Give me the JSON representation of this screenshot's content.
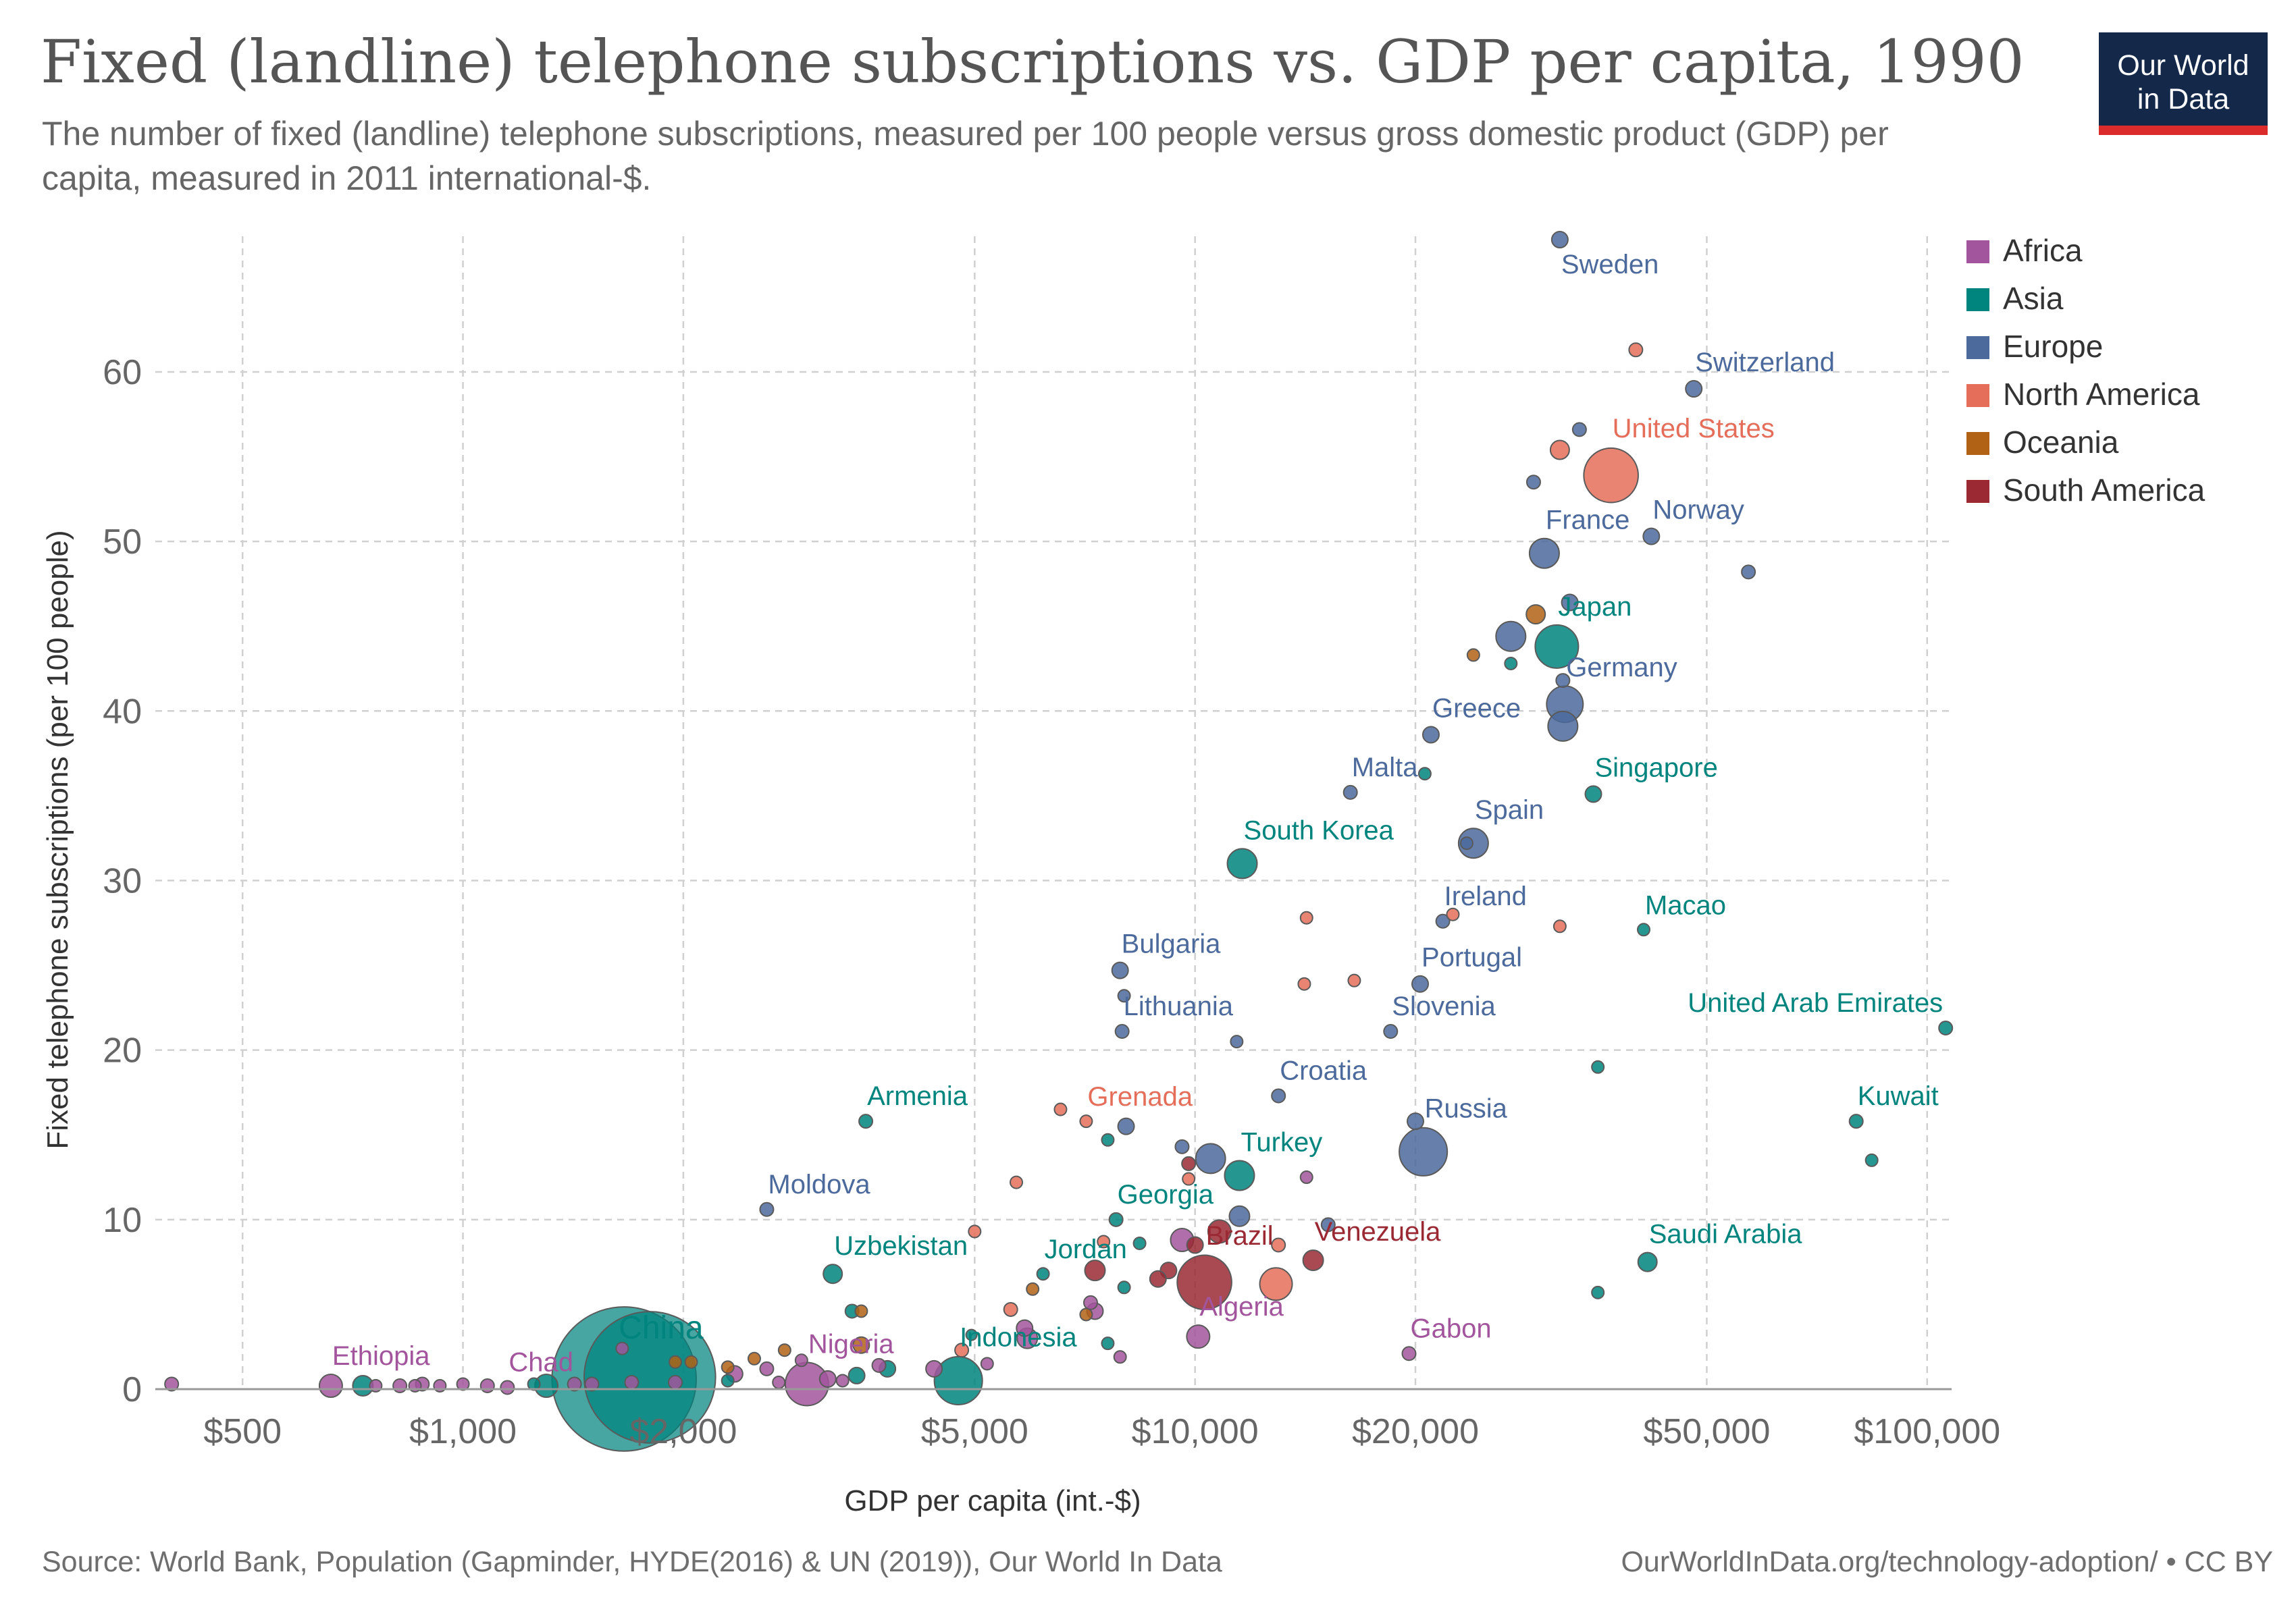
{
  "page": {
    "title": "Fixed (landline) telephone subscriptions vs. GDP per capita, 1990",
    "subtitle": "The number of fixed (landline) telephone subscriptions, measured per 100 people versus gross domestic product (GDP) per capita, measured in 2011 international-$.",
    "logo_line1": "Our World",
    "logo_line2": "in Data",
    "source": "Source: World Bank, Population (Gapminder, HYDE(2016) & UN (2019)), Our World In Data",
    "url": "OurWorldInData.org/technology-adoption/ • CC BY"
  },
  "chart_data": {
    "type": "scatter",
    "xlabel": "GDP per capita (int.-$)",
    "ylabel": "Fixed telephone subscriptions (per 100 people)",
    "x_scale": "log",
    "xlim": [
      380,
      108000
    ],
    "ylim": [
      0,
      68
    ],
    "x_ticks": [
      500,
      1000,
      2000,
      5000,
      10000,
      20000,
      50000,
      100000
    ],
    "x_tick_labels": [
      "$500",
      "$1,000",
      "$2,000",
      "$5,000",
      "$10,000",
      "$20,000",
      "$50,000",
      "$100,000"
    ],
    "y_ticks": [
      0,
      10,
      20,
      30,
      40,
      50,
      60
    ],
    "y_tick_labels": [
      "0",
      "10",
      "20",
      "30",
      "40",
      "50",
      "60"
    ],
    "grid": true,
    "legend_position": "right",
    "legend": [
      {
        "name": "Africa",
        "color": "#a2559c"
      },
      {
        "name": "Asia",
        "color": "#00847e"
      },
      {
        "name": "Europe",
        "color": "#4c6a9c"
      },
      {
        "name": "North America",
        "color": "#e56e5a"
      },
      {
        "name": "Oceania",
        "color": "#b16214"
      },
      {
        "name": "South America",
        "color": "#9a2934"
      }
    ],
    "points": [
      {
        "label": "Sweden",
        "x": 31500,
        "y": 67.8,
        "region": "Europe",
        "size": 1
      },
      {
        "label": "Switzerland",
        "x": 48000,
        "y": 59.0,
        "region": "Europe",
        "size": 1
      },
      {
        "label": "United States",
        "x": 37000,
        "y": 53.9,
        "region": "North America",
        "size": 4
      },
      {
        "label": "France",
        "x": 30000,
        "y": 49.3,
        "region": "Europe",
        "size": 2
      },
      {
        "label": "Norway",
        "x": 42000,
        "y": 50.3,
        "region": "Europe",
        "size": 1
      },
      {
        "label": "Japan",
        "x": 31200,
        "y": 43.8,
        "region": "Asia",
        "size": 3
      },
      {
        "label": "Germany",
        "x": 32000,
        "y": 40.4,
        "region": "Europe",
        "size": 2.5
      },
      {
        "label": "Greece",
        "x": 21000,
        "y": 38.6,
        "region": "Europe",
        "size": 1
      },
      {
        "label": "Singapore",
        "x": 35000,
        "y": 35.1,
        "region": "Asia",
        "size": 1
      },
      {
        "label": "Malta",
        "x": 16300,
        "y": 35.2,
        "region": "Europe",
        "size": 0.8
      },
      {
        "label": "Spain",
        "x": 24000,
        "y": 32.2,
        "region": "Europe",
        "size": 2
      },
      {
        "label": "South Korea",
        "x": 11600,
        "y": 31.0,
        "region": "Asia",
        "size": 2
      },
      {
        "label": "Ireland",
        "x": 21800,
        "y": 27.6,
        "region": "Europe",
        "size": 0.8
      },
      {
        "label": "Macao",
        "x": 41000,
        "y": 27.1,
        "region": "Asia",
        "size": 0.7
      },
      {
        "label": "Bulgaria",
        "x": 7900,
        "y": 24.7,
        "region": "Europe",
        "size": 1
      },
      {
        "label": "Portugal",
        "x": 20300,
        "y": 23.9,
        "region": "Europe",
        "size": 1
      },
      {
        "label": "Lithuania",
        "x": 7950,
        "y": 21.1,
        "region": "Europe",
        "size": 0.8
      },
      {
        "label": "Slovenia",
        "x": 18500,
        "y": 21.1,
        "region": "Europe",
        "size": 0.8
      },
      {
        "label": "United Arab Emirates",
        "x": 106000,
        "y": 21.3,
        "region": "Asia",
        "size": 0.8
      },
      {
        "label": "Croatia",
        "x": 13000,
        "y": 17.3,
        "region": "Europe",
        "size": 0.8
      },
      {
        "label": "Armenia",
        "x": 3550,
        "y": 15.8,
        "region": "Asia",
        "size": 0.8
      },
      {
        "label": "Grenada",
        "x": 7100,
        "y": 15.8,
        "region": "North America",
        "size": 0.7
      },
      {
        "label": "Kuwait",
        "x": 80000,
        "y": 15.8,
        "region": "Asia",
        "size": 0.8
      },
      {
        "label": "Russia",
        "x": 20500,
        "y": 14.0,
        "region": "Europe",
        "size": 3.5
      },
      {
        "label": "Turkey",
        "x": 11500,
        "y": 12.6,
        "region": "Asia",
        "size": 2
      },
      {
        "label": "Moldova",
        "x": 2600,
        "y": 10.6,
        "region": "Europe",
        "size": 0.8
      },
      {
        "label": "Georgia",
        "x": 7800,
        "y": 10.0,
        "region": "Asia",
        "size": 0.8
      },
      {
        "label": "Saudi Arabia",
        "x": 41500,
        "y": 7.5,
        "region": "Asia",
        "size": 1.2
      },
      {
        "label": "Jordan",
        "x": 6200,
        "y": 6.8,
        "region": "Asia",
        "size": 0.7
      },
      {
        "label": "Uzbekistan",
        "x": 3200,
        "y": 6.8,
        "region": "Asia",
        "size": 1.2
      },
      {
        "label": "Venezuela",
        "x": 14500,
        "y": 7.6,
        "region": "South America",
        "size": 1.3
      },
      {
        "label": "Brazil",
        "x": 10300,
        "y": 6.3,
        "region": "South America",
        "size": 4
      },
      {
        "label": "Algeria",
        "x": 10100,
        "y": 3.1,
        "region": "Africa",
        "size": 1.5
      },
      {
        "label": "Gabon",
        "x": 19600,
        "y": 2.1,
        "region": "Africa",
        "size": 0.8
      },
      {
        "label": "China",
        "x": 1660,
        "y": 0.6,
        "region": "Asia",
        "size": 11
      },
      {
        "label": "Indonesia",
        "x": 4750,
        "y": 0.5,
        "region": "Asia",
        "size": 3.5
      },
      {
        "label": "Nigeria",
        "x": 2950,
        "y": 0.3,
        "region": "Africa",
        "size": 3
      },
      {
        "label": "Ethiopia",
        "x": 660,
        "y": 0.2,
        "region": "Africa",
        "size": 1.5
      },
      {
        "label": "Chad",
        "x": 1150,
        "y": 0.1,
        "region": "Africa",
        "size": 0.8
      },
      {
        "label": "",
        "x": 1800,
        "y": 0.7,
        "region": "Asia",
        "size": 10
      },
      {
        "label": "",
        "x": 40000,
        "y": 61.3,
        "region": "North America",
        "size": 0.8
      },
      {
        "label": "",
        "x": 33500,
        "y": 56.6,
        "region": "Europe",
        "size": 0.8
      },
      {
        "label": "",
        "x": 31500,
        "y": 55.4,
        "region": "North America",
        "size": 1.2
      },
      {
        "label": "",
        "x": 29000,
        "y": 53.5,
        "region": "Europe",
        "size": 0.8
      },
      {
        "label": "",
        "x": 57000,
        "y": 48.2,
        "region": "Europe",
        "size": 0.8
      },
      {
        "label": "",
        "x": 32500,
        "y": 46.4,
        "region": "Europe",
        "size": 1
      },
      {
        "label": "",
        "x": 29200,
        "y": 45.7,
        "region": "Oceania",
        "size": 1.2
      },
      {
        "label": "",
        "x": 27000,
        "y": 44.4,
        "region": "Europe",
        "size": 2
      },
      {
        "label": "",
        "x": 24000,
        "y": 43.3,
        "region": "Oceania",
        "size": 0.7
      },
      {
        "label": "",
        "x": 27000,
        "y": 42.8,
        "region": "Asia",
        "size": 0.7
      },
      {
        "label": "",
        "x": 31800,
        "y": 41.8,
        "region": "Europe",
        "size": 0.8
      },
      {
        "label": "",
        "x": 31800,
        "y": 39.1,
        "region": "Europe",
        "size": 2
      },
      {
        "label": "",
        "x": 20600,
        "y": 36.3,
        "region": "Asia",
        "size": 0.7
      },
      {
        "label": "",
        "x": 23500,
        "y": 32.2,
        "region": "Europe",
        "size": 0.7
      },
      {
        "label": "",
        "x": 14200,
        "y": 27.8,
        "region": "North America",
        "size": 0.7
      },
      {
        "label": "",
        "x": 22500,
        "y": 28.0,
        "region": "North America",
        "size": 0.7
      },
      {
        "label": "",
        "x": 31500,
        "y": 27.3,
        "region": "North America",
        "size": 0.7
      },
      {
        "label": "",
        "x": 14100,
        "y": 23.9,
        "region": "North America",
        "size": 0.7
      },
      {
        "label": "",
        "x": 16500,
        "y": 24.1,
        "region": "North America",
        "size": 0.7
      },
      {
        "label": "",
        "x": 8000,
        "y": 23.2,
        "region": "Europe",
        "size": 0.7
      },
      {
        "label": "",
        "x": 11400,
        "y": 20.5,
        "region": "Europe",
        "size": 0.7
      },
      {
        "label": "",
        "x": 35500,
        "y": 19.0,
        "region": "Asia",
        "size": 0.7
      },
      {
        "label": "",
        "x": 6550,
        "y": 16.5,
        "region": "North America",
        "size": 0.7
      },
      {
        "label": "",
        "x": 8050,
        "y": 15.5,
        "region": "Europe",
        "size": 1
      },
      {
        "label": "",
        "x": 7600,
        "y": 14.7,
        "region": "Asia",
        "size": 0.7
      },
      {
        "label": "",
        "x": 20000,
        "y": 15.8,
        "region": "Europe",
        "size": 1
      },
      {
        "label": "",
        "x": 9600,
        "y": 14.3,
        "region": "Europe",
        "size": 0.8
      },
      {
        "label": "",
        "x": 9800,
        "y": 13.3,
        "region": "South America",
        "size": 0.8
      },
      {
        "label": "",
        "x": 10500,
        "y": 13.6,
        "region": "Europe",
        "size": 2
      },
      {
        "label": "",
        "x": 84000,
        "y": 13.5,
        "region": "Asia",
        "size": 0.7
      },
      {
        "label": "",
        "x": 5700,
        "y": 12.2,
        "region": "North America",
        "size": 0.7
      },
      {
        "label": "",
        "x": 9800,
        "y": 12.4,
        "region": "North America",
        "size": 0.7
      },
      {
        "label": "",
        "x": 14200,
        "y": 12.5,
        "region": "Africa",
        "size": 0.7
      },
      {
        "label": "",
        "x": 11500,
        "y": 10.2,
        "region": "Europe",
        "size": 1.3
      },
      {
        "label": "",
        "x": 15200,
        "y": 9.7,
        "region": "Europe",
        "size": 0.8
      },
      {
        "label": "",
        "x": 5000,
        "y": 9.3,
        "region": "North America",
        "size": 0.7
      },
      {
        "label": "",
        "x": 10800,
        "y": 9.3,
        "region": "South America",
        "size": 1.5
      },
      {
        "label": "",
        "x": 9600,
        "y": 8.8,
        "region": "Africa",
        "size": 1.5
      },
      {
        "label": "",
        "x": 8400,
        "y": 8.6,
        "region": "Asia",
        "size": 0.7
      },
      {
        "label": "",
        "x": 7500,
        "y": 8.7,
        "region": "North America",
        "size": 0.7
      },
      {
        "label": "",
        "x": 10000,
        "y": 8.5,
        "region": "South America",
        "size": 1
      },
      {
        "label": "",
        "x": 13000,
        "y": 8.5,
        "region": "North America",
        "size": 0.8
      },
      {
        "label": "",
        "x": 9200,
        "y": 7.0,
        "region": "South America",
        "size": 1
      },
      {
        "label": "",
        "x": 7300,
        "y": 7.0,
        "region": "South America",
        "size": 1.3
      },
      {
        "label": "",
        "x": 8900,
        "y": 6.5,
        "region": "South America",
        "size": 1
      },
      {
        "label": "",
        "x": 12900,
        "y": 6.2,
        "region": "North America",
        "size": 2.2
      },
      {
        "label": "",
        "x": 35500,
        "y": 5.7,
        "region": "Asia",
        "size": 0.7
      },
      {
        "label": "",
        "x": 6000,
        "y": 5.9,
        "region": "Oceania",
        "size": 0.7
      },
      {
        "label": "",
        "x": 8000,
        "y": 6.0,
        "region": "Asia",
        "size": 0.7
      },
      {
        "label": "",
        "x": 7200,
        "y": 5.1,
        "region": "Africa",
        "size": 0.8
      },
      {
        "label": "",
        "x": 7300,
        "y": 4.6,
        "region": "Africa",
        "size": 1
      },
      {
        "label": "",
        "x": 7100,
        "y": 4.4,
        "region": "Oceania",
        "size": 0.7
      },
      {
        "label": "",
        "x": 5600,
        "y": 4.7,
        "region": "North America",
        "size": 0.8
      },
      {
        "label": "",
        "x": 3400,
        "y": 4.6,
        "region": "Asia",
        "size": 0.8
      },
      {
        "label": "",
        "x": 3500,
        "y": 4.6,
        "region": "Oceania",
        "size": 0.7
      },
      {
        "label": "",
        "x": 5850,
        "y": 3.6,
        "region": "Africa",
        "size": 1
      },
      {
        "label": "",
        "x": 5900,
        "y": 3.0,
        "region": "Africa",
        "size": 1.3
      },
      {
        "label": "",
        "x": 7600,
        "y": 2.7,
        "region": "Asia",
        "size": 0.7
      },
      {
        "label": "",
        "x": 7900,
        "y": 1.9,
        "region": "Africa",
        "size": 0.7
      },
      {
        "label": "",
        "x": 4800,
        "y": 2.3,
        "region": "North America",
        "size": 0.8
      },
      {
        "label": "",
        "x": 4950,
        "y": 3.2,
        "region": "Asia",
        "size": 0.6
      },
      {
        "label": "",
        "x": 3500,
        "y": 2.6,
        "region": "Oceania",
        "size": 1
      },
      {
        "label": "",
        "x": 2750,
        "y": 2.3,
        "region": "Oceania",
        "size": 0.7
      },
      {
        "label": "",
        "x": 2500,
        "y": 1.8,
        "region": "Oceania",
        "size": 0.7
      },
      {
        "label": "",
        "x": 2900,
        "y": 1.7,
        "region": "Africa",
        "size": 0.7
      },
      {
        "label": "",
        "x": 3700,
        "y": 1.4,
        "region": "Africa",
        "size": 0.8
      },
      {
        "label": "",
        "x": 3800,
        "y": 1.2,
        "region": "Asia",
        "size": 1
      },
      {
        "label": "",
        "x": 5200,
        "y": 1.5,
        "region": "Africa",
        "size": 0.7
      },
      {
        "label": "",
        "x": 4400,
        "y": 1.2,
        "region": "Africa",
        "size": 1
      },
      {
        "label": "",
        "x": 3450,
        "y": 0.8,
        "region": "Asia",
        "size": 1
      },
      {
        "label": "",
        "x": 3300,
        "y": 0.5,
        "region": "Africa",
        "size": 0.7
      },
      {
        "label": "",
        "x": 3150,
        "y": 0.6,
        "region": "Africa",
        "size": 1
      },
      {
        "label": "",
        "x": 2600,
        "y": 1.2,
        "region": "Africa",
        "size": 0.8
      },
      {
        "label": "",
        "x": 2700,
        "y": 0.4,
        "region": "Africa",
        "size": 0.7
      },
      {
        "label": "",
        "x": 2350,
        "y": 0.9,
        "region": "Africa",
        "size": 1
      },
      {
        "label": "",
        "x": 2300,
        "y": 1.3,
        "region": "Oceania",
        "size": 0.7
      },
      {
        "label": "",
        "x": 2300,
        "y": 0.5,
        "region": "Asia",
        "size": 0.7
      },
      {
        "label": "",
        "x": 2050,
        "y": 1.6,
        "region": "Oceania",
        "size": 0.7
      },
      {
        "label": "",
        "x": 1950,
        "y": 1.6,
        "region": "Oceania",
        "size": 0.7
      },
      {
        "label": "",
        "x": 1650,
        "y": 2.4,
        "region": "Africa",
        "size": 0.7
      },
      {
        "label": "",
        "x": 1950,
        "y": 0.4,
        "region": "Africa",
        "size": 0.8
      },
      {
        "label": "",
        "x": 1700,
        "y": 0.4,
        "region": "Africa",
        "size": 0.8
      },
      {
        "label": "",
        "x": 1500,
        "y": 0.3,
        "region": "Africa",
        "size": 0.8
      },
      {
        "label": "",
        "x": 1420,
        "y": 0.3,
        "region": "Africa",
        "size": 0.8
      },
      {
        "label": "",
        "x": 1300,
        "y": 0.2,
        "region": "Asia",
        "size": 1.5
      },
      {
        "label": "",
        "x": 1250,
        "y": 0.3,
        "region": "Asia",
        "size": 0.7
      },
      {
        "label": "",
        "x": 1080,
        "y": 0.2,
        "region": "Africa",
        "size": 0.8
      },
      {
        "label": "",
        "x": 1000,
        "y": 0.3,
        "region": "Africa",
        "size": 0.7
      },
      {
        "label": "",
        "x": 930,
        "y": 0.2,
        "region": "Africa",
        "size": 0.7
      },
      {
        "label": "",
        "x": 880,
        "y": 0.3,
        "region": "Africa",
        "size": 0.8
      },
      {
        "label": "",
        "x": 860,
        "y": 0.2,
        "region": "Africa",
        "size": 0.7
      },
      {
        "label": "",
        "x": 820,
        "y": 0.2,
        "region": "Africa",
        "size": 0.8
      },
      {
        "label": "",
        "x": 760,
        "y": 0.2,
        "region": "Africa",
        "size": 0.7
      },
      {
        "label": "",
        "x": 730,
        "y": 0.2,
        "region": "Asia",
        "size": 1.3
      },
      {
        "label": "",
        "x": 400,
        "y": 0.3,
        "region": "Africa",
        "size": 0.8
      }
    ]
  }
}
